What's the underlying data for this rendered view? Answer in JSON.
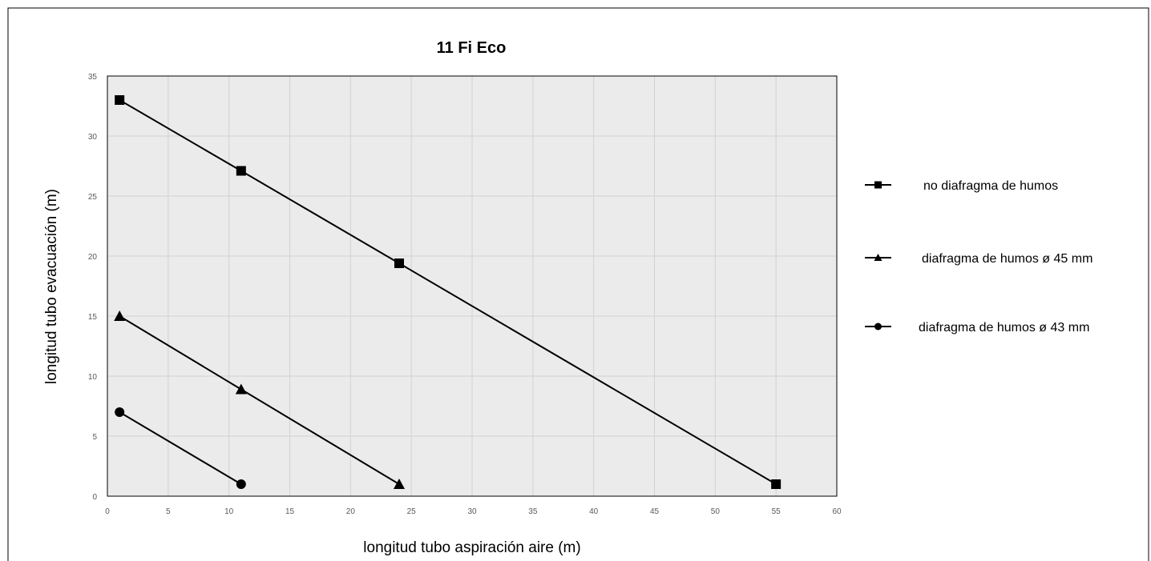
{
  "chart_data": {
    "type": "line",
    "title": "11 Fi Eco",
    "xlabel": "longitud tubo aspiración aire (m)",
    "ylabel": "longitud tubo evacuación (m)",
    "xlim": [
      0,
      60
    ],
    "ylim": [
      0,
      35
    ],
    "x_ticks": [
      "0",
      "5",
      "10",
      "15",
      "20",
      "25",
      "30",
      "35",
      "40",
      "45",
      "50",
      "55",
      "60"
    ],
    "y_ticks": [
      "0",
      "5",
      "10",
      "15",
      "20",
      "25",
      "30",
      "35"
    ],
    "grid": true,
    "legend_position": "right",
    "plot_background": "#ebebeb",
    "line_color": "#000000",
    "series": [
      {
        "name": "no diafragma de humos",
        "marker": "square",
        "x": [
          1,
          11,
          24,
          55
        ],
        "y": [
          33,
          27.1,
          19.4,
          1
        ]
      },
      {
        "name": "diafragma de humos ø 45 mm",
        "marker": "triangle",
        "x": [
          1,
          11,
          24
        ],
        "y": [
          15,
          8.9,
          1
        ]
      },
      {
        "name": "diafragma de humos ø 43 mm",
        "marker": "circle",
        "x": [
          1,
          11
        ],
        "y": [
          7,
          1
        ]
      }
    ]
  }
}
